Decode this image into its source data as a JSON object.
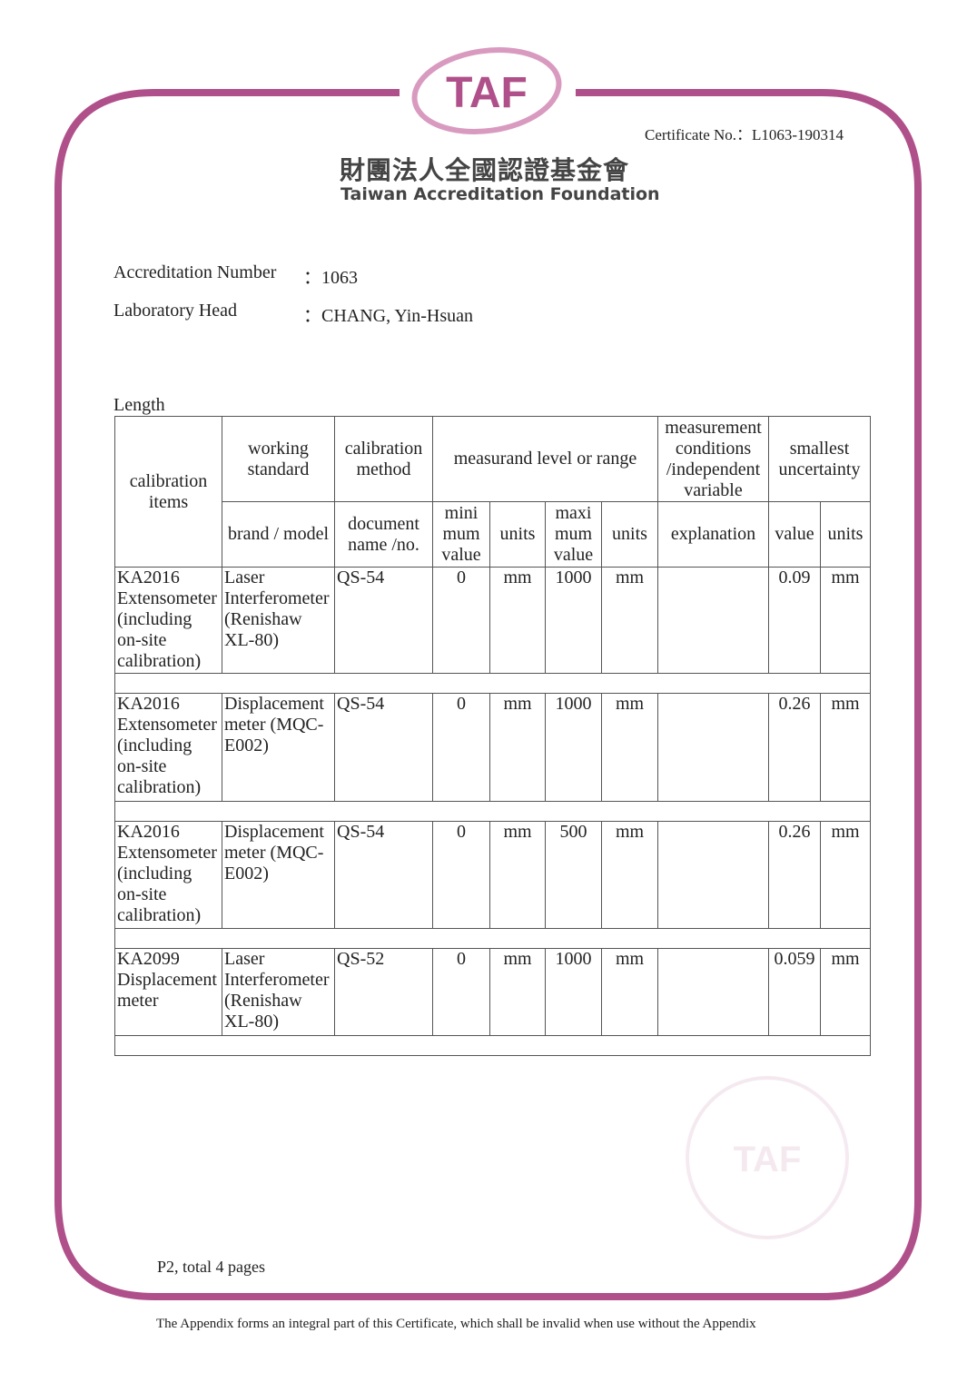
{
  "logo": {
    "text": "TAF",
    "color_primary": "#b0508a",
    "color_light": "#d99ac0"
  },
  "header": {
    "certificate_no": "Certificate No.：L1063-190314",
    "org_name_cn": "財團法人全國認證基金會",
    "org_name_en": "Taiwan Accreditation Foundation"
  },
  "info": {
    "accreditation_label": "Accreditation Number",
    "accreditation_value": "：1063",
    "head_label": "Laboratory Head",
    "head_value": "：CHANG, Yin-Hsuan"
  },
  "section_title": "Length",
  "table": {
    "headers": {
      "calibration_items": "calibration items",
      "working_standard": "working standard",
      "calibration_method": "calibration method",
      "measurand": "measurand level or range",
      "conditions": "measurement conditions /independent variable",
      "uncertainty": "smallest uncertainty",
      "brand_model": "brand / model",
      "document": "document name /no.",
      "min_value": "mini mum value",
      "units1": "units",
      "max_value": "maxi mum value",
      "units2": "units",
      "explanation": "explanation",
      "value": "value",
      "units3": "units"
    },
    "rows": [
      {
        "item": "KA2016 Extensometer (including on-site calibration)",
        "standard": "Laser Interferometer (Renishaw XL-80)",
        "method": "QS-54",
        "min": "0",
        "min_units": "mm",
        "max": "1000",
        "max_units": "mm",
        "explanation": "",
        "unc": "0.09",
        "unc_units": "mm"
      },
      {
        "item": "KA2016 Extensometer (including on-site calibration)",
        "standard": "Displacement meter (MQC-E002)",
        "method": "QS-54",
        "min": "0",
        "min_units": "mm",
        "max": "1000",
        "max_units": "mm",
        "explanation": "",
        "unc": "0.26",
        "unc_units": "mm"
      },
      {
        "item": "KA2016 Extensometer (including on-site calibration)",
        "standard": "Displacement meter (MQC-E002)",
        "method": "QS-54",
        "min": "0",
        "min_units": "mm",
        "max": "500",
        "max_units": "mm",
        "explanation": "",
        "unc": "0.26",
        "unc_units": "mm"
      },
      {
        "item": "KA2099 Displacement meter",
        "standard": "Laser Interferometer (Renishaw XL-80)",
        "method": "QS-52",
        "min": "0",
        "min_units": "mm",
        "max": "1000",
        "max_units": "mm",
        "explanation": "",
        "unc": "0.059",
        "unc_units": "mm"
      }
    ]
  },
  "page_info": "P2, total 4 pages",
  "footer_note": "The Appendix forms an integral part of this Certificate, which shall be invalid when use without the Appendix"
}
